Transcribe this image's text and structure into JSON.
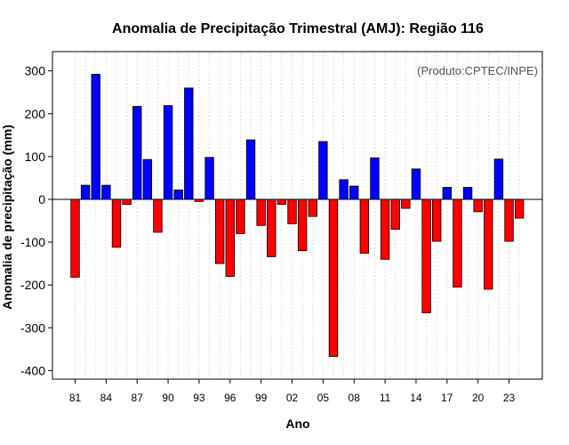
{
  "chart_data": {
    "type": "bar",
    "title": "Anomalia de Precipitação Trimestral (AMJ): Região 116",
    "xlabel": "Ano",
    "ylabel": "Anomalia de precipitação (mm)",
    "source": "(Produto:CPTEC/INPE)",
    "ylim": [
      -420,
      345
    ],
    "yticks": [
      -400,
      -300,
      -200,
      -100,
      0,
      100,
      200,
      300
    ],
    "xtick_labels": [
      "81",
      "84",
      "87",
      "90",
      "93",
      "96",
      "99",
      "02",
      "05",
      "08",
      "11",
      "14",
      "17",
      "20",
      "23"
    ],
    "grid": "vertical-dotted",
    "categories": [
      "1981",
      "1982",
      "1983",
      "1984",
      "1985",
      "1986",
      "1987",
      "1988",
      "1989",
      "1990",
      "1991",
      "1992",
      "1993",
      "1994",
      "1995",
      "1996",
      "1997",
      "1998",
      "1999",
      "2000",
      "2001",
      "2002",
      "2003",
      "2004",
      "2005",
      "2006",
      "2007",
      "2008",
      "2009",
      "2010",
      "2011",
      "2012",
      "2013",
      "2014",
      "2015",
      "2016",
      "2017",
      "2018",
      "2019",
      "2020",
      "2021",
      "2022",
      "2023",
      "2024"
    ],
    "values": [
      -182,
      33,
      292,
      33,
      -112,
      -12,
      217,
      93,
      -77,
      219,
      22,
      260,
      -5,
      98,
      -150,
      -180,
      -80,
      139,
      -61,
      -134,
      -12,
      -57,
      -120,
      -40,
      135,
      -367,
      46,
      31,
      -126,
      97,
      -140,
      -70,
      -21,
      71,
      -265,
      -98,
      28,
      -205,
      28,
      -29,
      -210,
      94,
      -98,
      -44
    ],
    "colors": {
      "positive": "#0000ff",
      "negative": "#ff0000",
      "edge": "#000000",
      "grid": "#c8c8c8"
    }
  }
}
